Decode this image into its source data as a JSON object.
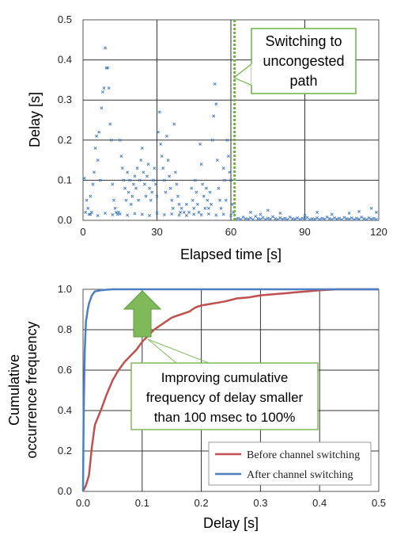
{
  "chart_data": [
    {
      "type": "scatter",
      "xlabel": "Elapsed time [s]",
      "ylabel": "Delay [s]",
      "xlim": [
        0,
        120
      ],
      "ylim": [
        0,
        0.5
      ],
      "xticks": [
        "0",
        "30",
        "60",
        "90",
        "120"
      ],
      "yticks": [
        "0.0",
        "0.1",
        "0.2",
        "0.3",
        "0.4",
        "0.5"
      ],
      "grid": true,
      "marker_color": "#4a7fc1",
      "switch_line": {
        "x": 61.5,
        "color": "#6cb33f"
      },
      "annotation": {
        "lines": [
          "Switching to",
          "unconge​sted",
          "path"
        ]
      },
      "series": [
        {
          "points": [
            [
              0.5,
              0.105
            ],
            [
              1,
              0.02
            ],
            [
              1.5,
              0.05
            ],
            [
              2,
              0.03
            ],
            [
              2.5,
              0.015
            ],
            [
              3,
              0.06
            ],
            [
              3.5,
              0.02
            ],
            [
              4,
              0.09
            ],
            [
              4.5,
              0.12
            ],
            [
              5,
              0.18
            ],
            [
              5.5,
              0.21
            ],
            [
              6,
              0.15
            ],
            [
              6.5,
              0.22
            ],
            [
              7,
              0.1
            ],
            [
              7.5,
              0.28
            ],
            [
              8,
              0.32
            ],
            [
              8.5,
              0.33
            ],
            [
              9,
              0.43
            ],
            [
              9.5,
              0.38
            ],
            [
              10,
              0.38
            ],
            [
              10.5,
              0.33
            ],
            [
              11,
              0.24
            ],
            [
              11.5,
              0.2
            ],
            [
              12,
              0.09
            ],
            [
              12.5,
              0.05
            ],
            [
              13,
              0.03
            ],
            [
              13.5,
              0.02
            ],
            [
              14,
              0.015
            ],
            [
              14.5,
              0.02
            ],
            [
              15,
              0.2
            ],
            [
              15.5,
              0.16
            ],
            [
              16,
              0.13
            ],
            [
              16.5,
              0.1
            ],
            [
              17,
              0.08
            ],
            [
              17.5,
              0.05
            ],
            [
              18,
              0.12
            ],
            [
              18.5,
              0.07
            ],
            [
              19,
              0.1
            ],
            [
              19.5,
              0.04
            ],
            [
              20,
              0.06
            ],
            [
              20.5,
              0.09
            ],
            [
              21,
              0.11
            ],
            [
              21.5,
              0.08
            ],
            [
              22,
              0.13
            ],
            [
              22.5,
              0.05
            ],
            [
              23,
              0.1
            ],
            [
              23.5,
              0.15
            ],
            [
              24,
              0.18
            ],
            [
              24.5,
              0.12
            ],
            [
              25,
              0.09
            ],
            [
              25.5,
              0.06
            ],
            [
              26,
              0.11
            ],
            [
              26.5,
              0.14
            ],
            [
              27,
              0.08
            ],
            [
              27.5,
              0.05
            ],
            [
              28,
              0.07
            ],
            [
              28.5,
              0.1
            ],
            [
              29,
              0.13
            ],
            [
              29.5,
              0.09
            ],
            [
              30,
              0.06
            ],
            [
              30.5,
              0.22
            ],
            [
              31,
              0.27
            ],
            [
              31.5,
              0.19
            ],
            [
              32,
              0.16
            ],
            [
              32.5,
              0.13
            ],
            [
              33,
              0.1
            ],
            [
              33.5,
              0.07
            ],
            [
              34,
              0.21
            ],
            [
              34.5,
              0.15
            ],
            [
              35,
              0.11
            ],
            [
              35.5,
              0.08
            ],
            [
              36,
              0.05
            ],
            [
              36.5,
              0.03
            ],
            [
              37,
              0.24
            ],
            [
              37.5,
              0.12
            ],
            [
              38,
              0.09
            ],
            [
              38.5,
              0.06
            ],
            [
              39,
              0.04
            ],
            [
              39.5,
              0.02
            ],
            [
              40,
              0.03
            ],
            [
              41,
              0.02
            ],
            [
              42,
              0.04
            ],
            [
              43,
              0.02
            ],
            [
              44,
              0.08
            ],
            [
              44.5,
              0.05
            ],
            [
              45,
              0.03
            ],
            [
              45.5,
              0.1
            ],
            [
              46,
              0.07
            ],
            [
              46.5,
              0.04
            ],
            [
              47,
              0.02
            ],
            [
              47.5,
              0.19
            ],
            [
              48,
              0.14
            ],
            [
              48.5,
              0.09
            ],
            [
              49,
              0.06
            ],
            [
              49.5,
              0.03
            ],
            [
              50,
              0.08
            ],
            [
              50.5,
              0.05
            ],
            [
              51,
              0.03
            ],
            [
              51.5,
              0.07
            ],
            [
              52,
              0.04
            ],
            [
              52.5,
              0.2
            ],
            [
              53,
              0.26
            ],
            [
              53.5,
              0.34
            ],
            [
              54,
              0.29
            ],
            [
              54.5,
              0.15
            ],
            [
              55,
              0.08
            ],
            [
              55.5,
              0.05
            ],
            [
              56,
              0.03
            ],
            [
              57,
              0.13
            ],
            [
              57.5,
              0.1
            ],
            [
              58,
              0.05
            ],
            [
              58.5,
              0.2
            ],
            [
              59,
              0.16
            ],
            [
              59.5,
              0.12
            ],
            [
              60,
              0.1
            ],
            [
              60.5,
              0.04
            ],
            [
              61,
              0.02
            ],
            [
              3,
              0.015
            ],
            [
              6,
              0.012
            ],
            [
              9,
              0.018
            ],
            [
              12,
              0.014
            ],
            [
              15,
              0.016
            ],
            [
              18,
              0.013
            ],
            [
              21,
              0.017
            ],
            [
              24,
              0.015
            ],
            [
              27,
              0.012
            ],
            [
              30,
              0.018
            ],
            [
              33,
              0.014
            ],
            [
              36,
              0.016
            ],
            [
              39,
              0.013
            ],
            [
              42,
              0.012
            ],
            [
              45,
              0.015
            ],
            [
              48,
              0.014
            ],
            [
              51,
              0.016
            ],
            [
              54,
              0.013
            ],
            [
              57,
              0.015
            ],
            [
              60,
              0.012
            ],
            [
              62,
              0.003
            ],
            [
              63,
              0.005
            ],
            [
              64,
              0.002
            ],
            [
              65,
              0.008
            ],
            [
              66,
              0.004
            ],
            [
              67,
              0.003
            ],
            [
              68,
              0.006
            ],
            [
              69,
              0.002
            ],
            [
              70,
              0.01
            ],
            [
              71,
              0.004
            ],
            [
              72,
              0.003
            ],
            [
              73,
              0.007
            ],
            [
              74,
              0.002
            ],
            [
              75,
              0.005
            ],
            [
              76,
              0.003
            ],
            [
              77,
              0.009
            ],
            [
              78,
              0.004
            ],
            [
              79,
              0.002
            ],
            [
              80,
              0.006
            ],
            [
              81,
              0.003
            ],
            [
              82,
              0.005
            ],
            [
              83,
              0.002
            ],
            [
              84,
              0.008
            ],
            [
              85,
              0.004
            ],
            [
              86,
              0.003
            ],
            [
              87,
              0.006
            ],
            [
              88,
              0.002
            ],
            [
              89,
              0.005
            ],
            [
              90,
              0.003
            ],
            [
              91,
              0.007
            ],
            [
              92,
              0.002
            ],
            [
              93,
              0.004
            ],
            [
              94,
              0.003
            ],
            [
              95,
              0.006
            ],
            [
              96,
              0.002
            ],
            [
              97,
              0.005
            ],
            [
              98,
              0.003
            ],
            [
              99,
              0.008
            ],
            [
              100,
              0.004
            ],
            [
              101,
              0.002
            ],
            [
              102,
              0.006
            ],
            [
              103,
              0.003
            ],
            [
              104,
              0.005
            ],
            [
              105,
              0.002
            ],
            [
              106,
              0.007
            ],
            [
              107,
              0.004
            ],
            [
              108,
              0.003
            ],
            [
              109,
              0.006
            ],
            [
              110,
              0.002
            ],
            [
              111,
              0.005
            ],
            [
              112,
              0.003
            ],
            [
              113,
              0.008
            ],
            [
              114,
              0.004
            ],
            [
              115,
              0.002
            ],
            [
              116,
              0.006
            ],
            [
              117,
              0.003
            ],
            [
              118,
              0.005
            ],
            [
              119,
              0.002
            ],
            [
              68,
              0.02
            ],
            [
              72,
              0.015
            ],
            [
              75,
              0.025
            ],
            [
              80,
              0.018
            ],
            [
              90,
              0.012
            ],
            [
              95,
              0.02
            ],
            [
              101,
              0.015
            ],
            [
              108,
              0.018
            ],
            [
              112,
              0.022
            ],
            [
              117,
              0.03
            ],
            [
              119,
              0.02
            ]
          ]
        }
      ]
    },
    {
      "type": "line",
      "xlabel": "Delay [s]",
      "ylabel": "Cumulative occurrence frequency",
      "ylabel_lines": [
        "Cumulative",
        "occurrence frequency"
      ],
      "xlim": [
        0,
        0.5
      ],
      "ylim": [
        0,
        1.0
      ],
      "xticks": [
        "0.0",
        "0.1",
        "0.2",
        "0.3",
        "0.4",
        "0.5"
      ],
      "yticks": [
        "0.0",
        "0.2",
        "0.4",
        "0.6",
        "0.8",
        "1.0"
      ],
      "grid": true,
      "legend_position": "bottom-right",
      "annotation": {
        "lines": [
          "Improving cumulative",
          "frequency of delay smaller",
          "than 100 msec to 100%"
        ],
        "arrow_color": "#7fb95a"
      },
      "series": [
        {
          "name": "Before channel switching",
          "color": "#c0504d",
          "x": [
            0,
            0.005,
            0.01,
            0.015,
            0.02,
            0.03,
            0.04,
            0.05,
            0.06,
            0.07,
            0.08,
            0.09,
            0.1,
            0.11,
            0.12,
            0.13,
            0.14,
            0.15,
            0.16,
            0.17,
            0.18,
            0.19,
            0.2,
            0.22,
            0.24,
            0.26,
            0.28,
            0.3,
            0.32,
            0.34,
            0.36,
            0.38,
            0.4,
            0.43,
            0.5
          ],
          "y": [
            0,
            0.03,
            0.08,
            0.22,
            0.33,
            0.4,
            0.48,
            0.55,
            0.6,
            0.64,
            0.67,
            0.7,
            0.74,
            0.77,
            0.8,
            0.82,
            0.84,
            0.86,
            0.87,
            0.88,
            0.89,
            0.91,
            0.92,
            0.93,
            0.94,
            0.955,
            0.96,
            0.97,
            0.975,
            0.98,
            0.985,
            0.99,
            0.995,
            1.0,
            1.0
          ]
        },
        {
          "name": "After channel switching",
          "color": "#4a7fc1",
          "x": [
            0,
            0.001,
            0.003,
            0.005,
            0.008,
            0.01,
            0.015,
            0.02,
            0.03,
            0.04,
            0.05,
            0.5
          ],
          "y": [
            0,
            0.35,
            0.7,
            0.84,
            0.9,
            0.93,
            0.97,
            0.99,
            0.995,
            0.998,
            1.0,
            1.0
          ]
        }
      ]
    }
  ]
}
